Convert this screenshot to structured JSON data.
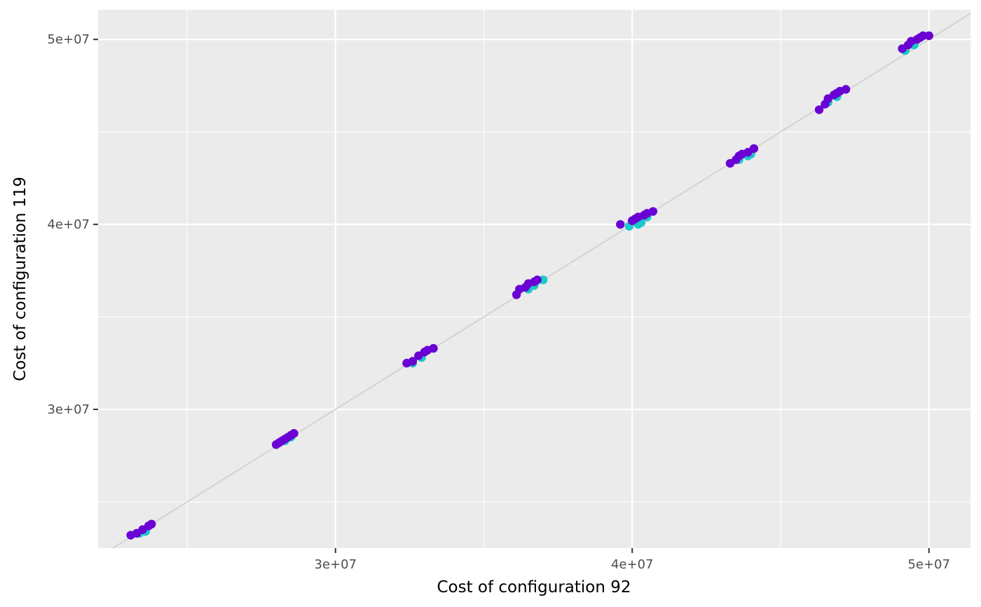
{
  "chart_data": {
    "type": "scatter",
    "xlabel": "Cost of configuration 92",
    "ylabel": "Cost of configuration 119",
    "xlim": [
      22000000,
      51400000
    ],
    "ylim": [
      22500000,
      51600000
    ],
    "x_ticks": [
      30000000,
      40000000,
      50000000
    ],
    "x_tick_labels": [
      "3e+07",
      "4e+07",
      "5e+07"
    ],
    "y_ticks": [
      30000000,
      40000000,
      50000000
    ],
    "y_tick_labels": [
      "3e+07",
      "4e+07",
      "5e+07"
    ],
    "grid": true,
    "reference_line": {
      "slope": 1,
      "intercept": 0
    },
    "legend": "none",
    "colors": {
      "panel_background": "#ebebeb",
      "grid": "#ffffff",
      "reference_line": "#d3d3d3",
      "series_a": "#6a00d4",
      "series_b": "#1cc8c8"
    },
    "series": [
      {
        "color": "#1cc8c8",
        "points": [
          [
            23400000,
            23300000
          ],
          [
            23600000,
            23400000
          ],
          [
            28300000,
            28300000
          ],
          [
            28500000,
            28500000
          ],
          [
            32600000,
            32500000
          ],
          [
            32900000,
            32800000
          ],
          [
            36500000,
            36500000
          ],
          [
            36700000,
            36700000
          ],
          [
            37000000,
            37000000
          ],
          [
            39900000,
            39900000
          ],
          [
            40200000,
            40000000
          ],
          [
            40300000,
            40100000
          ],
          [
            40500000,
            40400000
          ],
          [
            43600000,
            43500000
          ],
          [
            43900000,
            43700000
          ],
          [
            44000000,
            43800000
          ],
          [
            46600000,
            46600000
          ],
          [
            46900000,
            46900000
          ],
          [
            49200000,
            49400000
          ],
          [
            49500000,
            49700000
          ]
        ]
      },
      {
        "color": "#6a00d4",
        "points": [
          [
            23100000,
            23200000
          ],
          [
            23300000,
            23300000
          ],
          [
            23500000,
            23500000
          ],
          [
            23700000,
            23700000
          ],
          [
            23800000,
            23800000
          ],
          [
            28000000,
            28100000
          ],
          [
            28100000,
            28200000
          ],
          [
            28200000,
            28300000
          ],
          [
            28300000,
            28400000
          ],
          [
            28400000,
            28500000
          ],
          [
            28500000,
            28600000
          ],
          [
            28600000,
            28700000
          ],
          [
            32400000,
            32500000
          ],
          [
            32600000,
            32600000
          ],
          [
            32800000,
            32900000
          ],
          [
            33000000,
            33100000
          ],
          [
            33100000,
            33200000
          ],
          [
            33300000,
            33300000
          ],
          [
            36100000,
            36200000
          ],
          [
            36200000,
            36500000
          ],
          [
            36400000,
            36600000
          ],
          [
            36500000,
            36800000
          ],
          [
            36700000,
            36900000
          ],
          [
            36800000,
            37000000
          ],
          [
            39600000,
            40000000
          ],
          [
            40000000,
            40200000
          ],
          [
            40100000,
            40300000
          ],
          [
            40200000,
            40400000
          ],
          [
            40400000,
            40500000
          ],
          [
            40500000,
            40600000
          ],
          [
            40700000,
            40700000
          ],
          [
            43300000,
            43300000
          ],
          [
            43500000,
            43500000
          ],
          [
            43600000,
            43700000
          ],
          [
            43700000,
            43800000
          ],
          [
            43900000,
            43900000
          ],
          [
            44100000,
            44100000
          ],
          [
            46300000,
            46200000
          ],
          [
            46500000,
            46500000
          ],
          [
            46600000,
            46800000
          ],
          [
            46800000,
            47000000
          ],
          [
            46900000,
            47100000
          ],
          [
            47000000,
            47200000
          ],
          [
            47200000,
            47300000
          ],
          [
            49100000,
            49500000
          ],
          [
            49300000,
            49700000
          ],
          [
            49400000,
            49900000
          ],
          [
            49600000,
            50000000
          ],
          [
            49700000,
            50100000
          ],
          [
            49800000,
            50200000
          ],
          [
            50000000,
            50200000
          ]
        ]
      }
    ]
  }
}
